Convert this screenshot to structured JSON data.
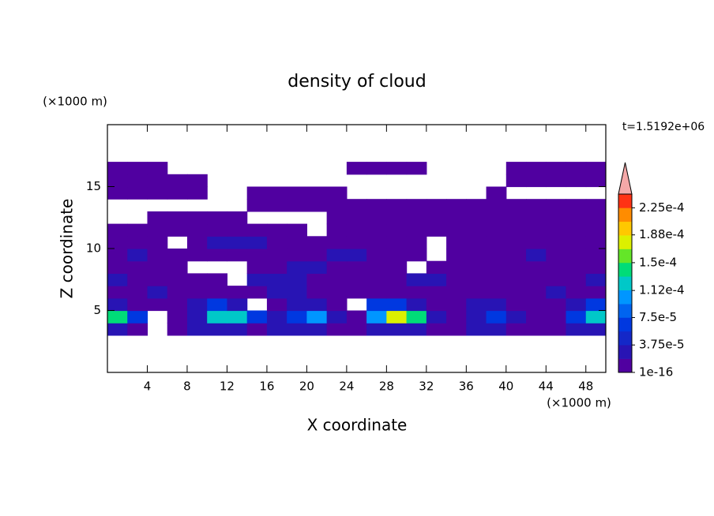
{
  "chart_data": {
    "type": "contour",
    "title": "density of cloud",
    "x_label": "X coordinate",
    "y_label": "Z coordinate",
    "x_unit": "(×1000 m)",
    "y_unit": "(×1000 m)",
    "annotation": "t=1.5192e+06",
    "xlim": [
      0,
      50
    ],
    "ylim": [
      0,
      20
    ],
    "xticks": [
      4,
      8,
      12,
      16,
      20,
      24,
      28,
      32,
      36,
      40,
      44,
      48
    ],
    "yticks": [
      5,
      10,
      15
    ],
    "x": [
      1,
      3,
      5,
      7,
      9,
      11,
      13,
      15,
      17,
      19,
      21,
      23,
      25,
      27,
      29,
      31,
      33,
      35,
      37,
      39,
      41,
      43,
      45,
      47,
      49
    ],
    "y": [
      3.5,
      4.5,
      5.5,
      6.5,
      7.5,
      8.5,
      9.5,
      10.5,
      11.5,
      12.5,
      13.5,
      14.5,
      15.5,
      16.5
    ],
    "z": [
      [
        3e-05,
        1e-05,
        null,
        1e-05,
        3e-05,
        3e-05,
        3e-05,
        1e-05,
        3e-05,
        3e-05,
        3e-05,
        1e-05,
        1e-05,
        3e-05,
        3e-05,
        3e-05,
        1e-05,
        1e-05,
        3e-05,
        3e-05,
        1e-05,
        1e-05,
        1e-05,
        3e-05,
        3e-05
      ],
      [
        0.00014,
        6e-05,
        null,
        1e-05,
        3e-05,
        0.00012,
        0.00012,
        6e-05,
        3e-05,
        6e-05,
        0.0001,
        3e-05,
        1e-05,
        0.0001,
        0.00017,
        0.00014,
        3e-05,
        1e-05,
        3e-05,
        6e-05,
        3e-05,
        1e-05,
        1e-05,
        6e-05,
        0.00012
      ],
      [
        3e-05,
        1e-05,
        1e-05,
        1e-05,
        3e-05,
        6e-05,
        3e-05,
        null,
        1e-05,
        3e-05,
        3e-05,
        1e-05,
        null,
        6e-05,
        6e-05,
        3e-05,
        1e-05,
        1e-05,
        3e-05,
        3e-05,
        1e-05,
        1e-05,
        1e-05,
        3e-05,
        6e-05
      ],
      [
        1e-05,
        1e-05,
        3e-05,
        1e-05,
        1e-05,
        1e-05,
        1e-05,
        1e-05,
        3e-05,
        3e-05,
        1e-05,
        1e-05,
        1e-05,
        1e-05,
        1e-05,
        1e-05,
        1e-05,
        1e-05,
        1e-05,
        1e-05,
        1e-05,
        1e-05,
        3e-05,
        1e-05,
        1e-05
      ],
      [
        3e-05,
        1e-05,
        1e-05,
        1e-05,
        1e-05,
        1e-05,
        null,
        3e-05,
        3e-05,
        3e-05,
        1e-05,
        1e-05,
        1e-05,
        1e-05,
        1e-05,
        3e-05,
        3e-05,
        1e-05,
        1e-05,
        1e-05,
        1e-05,
        1e-05,
        1e-05,
        1e-05,
        3e-05
      ],
      [
        1e-05,
        1e-05,
        1e-05,
        1e-05,
        null,
        null,
        null,
        1e-05,
        1e-05,
        3e-05,
        3e-05,
        1e-05,
        1e-05,
        1e-05,
        1e-05,
        null,
        1e-05,
        1e-05,
        1e-05,
        1e-05,
        1e-05,
        1e-05,
        1e-05,
        1e-05,
        1e-05
      ],
      [
        1e-05,
        3e-05,
        1e-05,
        1e-05,
        1e-05,
        1e-05,
        1e-05,
        1e-05,
        1e-05,
        1e-05,
        1e-05,
        3e-05,
        3e-05,
        1e-05,
        1e-05,
        1e-05,
        null,
        1e-05,
        1e-05,
        1e-05,
        1e-05,
        3e-05,
        1e-05,
        1e-05,
        1e-05
      ],
      [
        1e-05,
        1e-05,
        1e-05,
        null,
        1e-05,
        3e-05,
        3e-05,
        3e-05,
        1e-05,
        1e-05,
        1e-05,
        1e-05,
        1e-05,
        1e-05,
        1e-05,
        1e-05,
        null,
        1e-05,
        1e-05,
        1e-05,
        1e-05,
        1e-05,
        1e-05,
        1e-05,
        1e-05
      ],
      [
        1e-05,
        1e-05,
        1e-05,
        1e-05,
        1e-05,
        1e-05,
        1e-05,
        1e-05,
        1e-05,
        1e-05,
        null,
        1e-05,
        1e-05,
        1e-05,
        1e-05,
        1e-05,
        1e-05,
        1e-05,
        1e-05,
        1e-05,
        1e-05,
        1e-05,
        1e-05,
        1e-05,
        1e-05
      ],
      [
        null,
        null,
        1e-05,
        1e-05,
        1e-05,
        1e-05,
        1e-05,
        null,
        null,
        null,
        null,
        1e-05,
        1e-05,
        1e-05,
        1e-05,
        1e-05,
        1e-05,
        1e-05,
        1e-05,
        1e-05,
        1e-05,
        1e-05,
        1e-05,
        1e-05,
        1e-05
      ],
      [
        null,
        null,
        null,
        null,
        null,
        null,
        null,
        1e-05,
        1e-05,
        1e-05,
        1e-05,
        1e-05,
        1e-05,
        1e-05,
        1e-05,
        1e-05,
        1e-05,
        1e-05,
        1e-05,
        1e-05,
        1e-05,
        1e-05,
        1e-05,
        1e-05,
        1e-05
      ],
      [
        1e-05,
        1e-05,
        1e-05,
        1e-05,
        1e-05,
        null,
        null,
        1e-05,
        1e-05,
        1e-05,
        1e-05,
        1e-05,
        null,
        null,
        null,
        null,
        null,
        null,
        null,
        1e-05,
        null,
        null,
        null,
        null,
        null
      ],
      [
        1e-05,
        1e-05,
        1e-05,
        1e-05,
        1e-05,
        null,
        null,
        null,
        null,
        null,
        null,
        null,
        null,
        null,
        null,
        null,
        null,
        null,
        null,
        null,
        1e-05,
        1e-05,
        1e-05,
        1e-05,
        1e-05
      ],
      [
        1e-05,
        1e-05,
        1e-05,
        null,
        null,
        null,
        null,
        null,
        null,
        null,
        null,
        null,
        1e-05,
        1e-05,
        1e-05,
        1e-05,
        null,
        null,
        null,
        null,
        1e-05,
        1e-05,
        1e-05,
        1e-05,
        1e-05
      ]
    ],
    "colorbar": {
      "clim": [
        1e-16,
        0.00024375
      ],
      "levels": [
        1e-16,
        1.875e-05,
        3.75e-05,
        5.625e-05,
        7.5e-05,
        9.375e-05,
        0.0001125,
        0.00013125,
        0.00015,
        0.00016875,
        0.0001875,
        0.00020625,
        0.000225
      ],
      "colors": [
        "#5000a0",
        "#2814b4",
        "#1428c8",
        "#0038e0",
        "#0064f0",
        "#0096ff",
        "#00c8c8",
        "#00dc78",
        "#64e628",
        "#dcf000",
        "#ffc800",
        "#ff8c00",
        "#ff3214"
      ],
      "extend_color": "#f4a8a8",
      "ticks": [
        1e-16,
        {
          "value": 3.75e-05,
          "label": "3.75e-5"
        },
        {
          "value": 7.5e-05,
          "label": "7.5e-5"
        },
        {
          "value": 0.000112,
          "label": "1.12e-4"
        },
        {
          "value": 0.00015,
          "label": "1.5e-4"
        },
        {
          "value": 0.000188,
          "label": "1.88e-4"
        },
        {
          "value": 0.000225,
          "label": "2.25e-4"
        }
      ]
    }
  }
}
